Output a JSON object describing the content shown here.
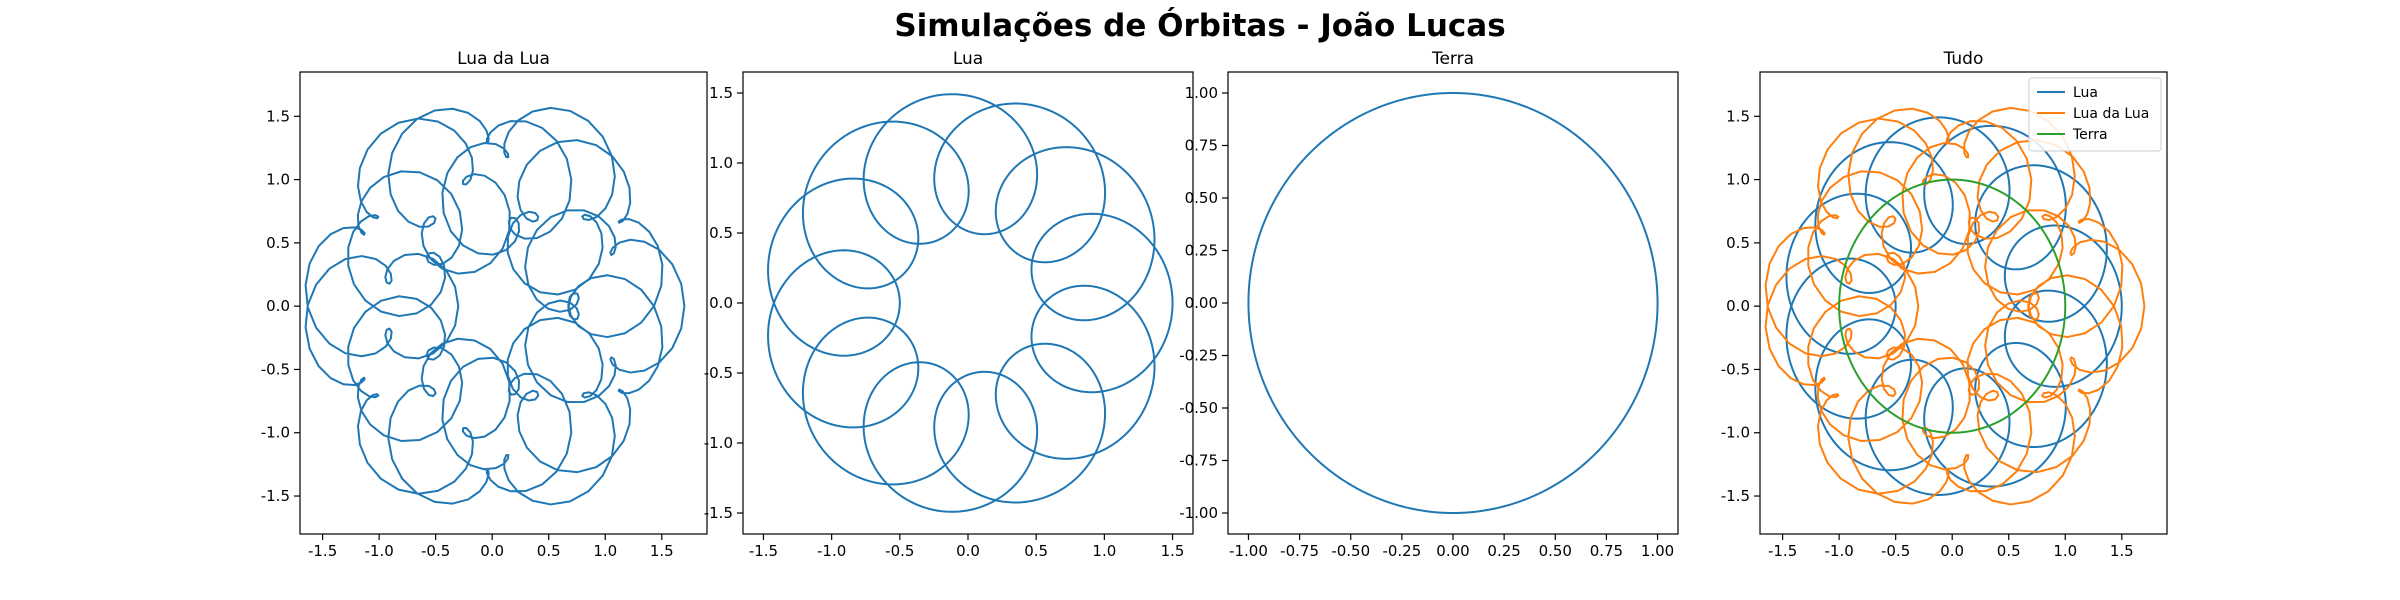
{
  "figure": {
    "title": "Simulações de Órbitas - João Lucas"
  },
  "colors": {
    "lua": "#1f77b4",
    "lua_da_lua": "#ff7f0e",
    "terra": "#2ca02c"
  },
  "chart_data": [
    {
      "type": "line",
      "title": "Lua da Lua",
      "xlim": [
        -1.7,
        1.9
      ],
      "ylim": [
        -1.8,
        1.85
      ],
      "xticks": [
        "-1.5",
        "-1.0",
        "-0.5",
        "0.0",
        "0.5",
        "1.0",
        "1.5"
      ],
      "yticks": [
        "-1.5",
        "-1.0",
        "-0.5",
        "0.0",
        "0.5",
        "1.0",
        "1.5"
      ],
      "series": [
        {
          "curve": "lua_da_lua",
          "color": "#1f77b4"
        }
      ]
    },
    {
      "type": "line",
      "title": "Lua",
      "xlim": [
        -1.65,
        1.65
      ],
      "ylim": [
        -1.65,
        1.65
      ],
      "xticks": [
        "-1.5",
        "-1.0",
        "-0.5",
        "0.0",
        "0.5",
        "1.0",
        "1.5"
      ],
      "yticks": [
        "-1.5",
        "-1.0",
        "-0.5",
        "0.0",
        "0.5",
        "1.0",
        "1.5"
      ],
      "series": [
        {
          "curve": "lua",
          "color": "#1f77b4"
        }
      ]
    },
    {
      "type": "line",
      "title": "Terra",
      "xlim": [
        -1.1,
        1.1
      ],
      "ylim": [
        -1.1,
        1.1
      ],
      "xticks": [
        "-1.00",
        "-0.75",
        "-0.50",
        "-0.25",
        "0.00",
        "0.25",
        "0.50",
        "0.75",
        "1.00"
      ],
      "yticks": [
        "-1.00",
        "-0.75",
        "-0.50",
        "-0.25",
        "0.00",
        "0.25",
        "0.50",
        "0.75",
        "1.00"
      ],
      "series": [
        {
          "curve": "terra",
          "color": "#1f77b4"
        }
      ]
    },
    {
      "type": "line",
      "title": "Tudo",
      "xlim": [
        -1.7,
        1.9
      ],
      "ylim": [
        -1.8,
        1.85
      ],
      "xticks": [
        "-1.5",
        "-1.0",
        "-0.5",
        "0.0",
        "0.5",
        "1.0",
        "1.5"
      ],
      "yticks": [
        "-1.5",
        "-1.0",
        "-0.5",
        "0.0",
        "0.5",
        "1.0",
        "1.5"
      ],
      "legend": "top-right",
      "series": [
        {
          "name": "Lua",
          "curve": "lua",
          "color": "#1f77b4"
        },
        {
          "name": "Lua da Lua",
          "curve": "lua_da_lua",
          "color": "#ff7f0e"
        },
        {
          "name": "Terra",
          "curve": "terra",
          "color": "#2ca02c"
        }
      ]
    }
  ]
}
